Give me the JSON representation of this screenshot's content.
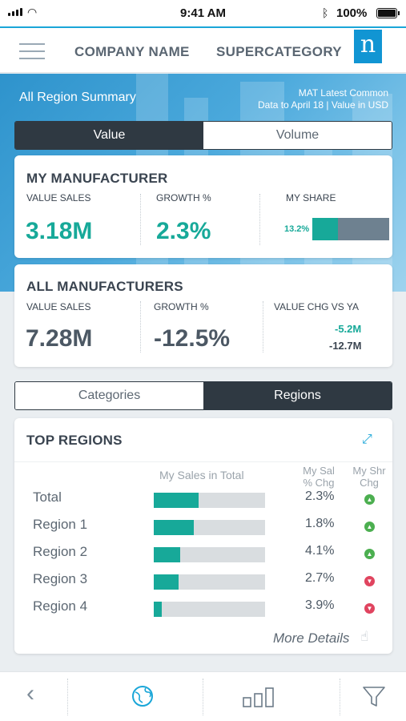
{
  "status": {
    "time": "9:41 AM",
    "battery": "100%"
  },
  "header": {
    "company": "COMPANY NAME",
    "supercategory": "SUPERCATEGORY",
    "logo": "n"
  },
  "hero": {
    "title": "All Region Summary",
    "note_line1": "MAT Latest Common",
    "note_line2": "Data to April 18 | Value in USD"
  },
  "toggle": {
    "value": "Value",
    "volume": "Volume",
    "selected": "Value"
  },
  "my_manufacturer": {
    "title": "MY MANUFACTURER",
    "value_sales_label": "VALUE SALES",
    "value_sales": "3.18M",
    "growth_label": "GROWTH %",
    "growth": "2.3%",
    "share_label": "MY SHARE",
    "share": "13.2%",
    "share_fraction": 0.33
  },
  "all_manufacturers": {
    "title": "ALL MANUFACTURERS",
    "value_sales_label": "VALUE SALES",
    "value_sales": "7.28M",
    "growth_label": "GROWTH %",
    "growth": "-12.5%",
    "chg_label": "VALUE CHG VS YA",
    "chg_1": "-5.2M",
    "chg_2": "-12.7M"
  },
  "tabs2": {
    "categories": "Categories",
    "regions": "Regions",
    "selected": "Regions"
  },
  "top_regions": {
    "title": "TOP REGIONS",
    "col_sales": "My Sales in Total",
    "col_chg_1": "My Sal",
    "col_chg_2": "% Chg",
    "col_shr_1": "My Shr",
    "col_shr_2": "Chg",
    "rows": [
      {
        "name": "Total",
        "share": 0.4,
        "pct": "2.3%",
        "dir": "up"
      },
      {
        "name": "Region 1",
        "share": 0.36,
        "pct": "1.8%",
        "dir": "up"
      },
      {
        "name": "Region 2",
        "share": 0.24,
        "pct": "4.1%",
        "dir": "up"
      },
      {
        "name": "Region 3",
        "share": 0.22,
        "pct": "2.7%",
        "dir": "down"
      },
      {
        "name": "Region 4",
        "share": 0.07,
        "pct": "3.9%",
        "dir": "down"
      }
    ],
    "more": "More Details"
  },
  "colors": {
    "accent": "#17a999",
    "dark": "#2f3942",
    "brand": "#1195d3"
  },
  "tabbar": [
    "back-icon",
    "globe-icon",
    "bar-chart-icon",
    "filter-icon"
  ]
}
